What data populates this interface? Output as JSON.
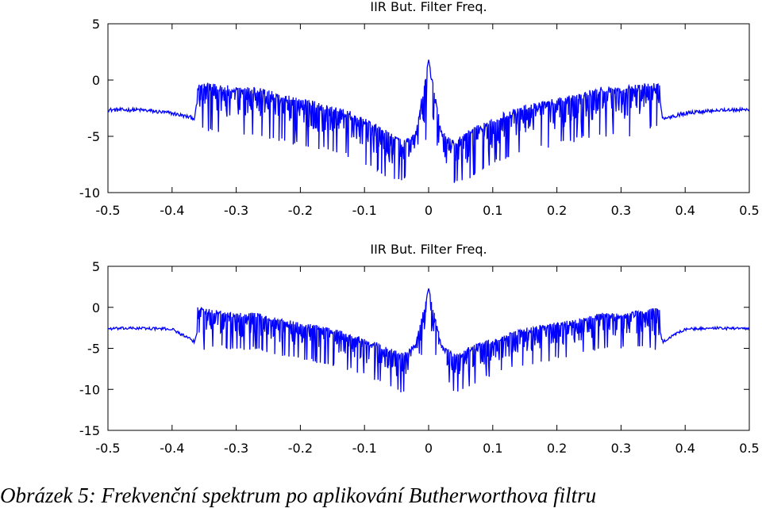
{
  "chart_data": [
    {
      "type": "line",
      "title": "IIR But. Filter Freq.",
      "xlabel": "",
      "ylabel": "",
      "xlim": [
        -0.5,
        0.5
      ],
      "ylim": [
        -10,
        5
      ],
      "xticks": [
        "-0.5",
        "-0.4",
        "-0.3",
        "-0.2",
        "-0.1",
        "0",
        "0.1",
        "0.2",
        "0.3",
        "0.4",
        "0.5"
      ],
      "yticks": [
        "5",
        "0",
        "-5",
        "-10"
      ],
      "grid": false,
      "color": "#0000ff",
      "envelope_x": [
        0,
        0.02,
        0.03,
        0.04,
        0.06,
        0.08,
        0.1,
        0.12,
        0.15,
        0.2,
        0.25,
        0.27,
        0.3,
        0.33,
        0.36,
        0.361,
        0.365,
        0.4,
        0.45,
        0.5
      ],
      "envelope_upper": [
        1.8,
        -4.4,
        -5.0,
        -5.4,
        -4.5,
        -3.9,
        -3.4,
        -2.8,
        -2.2,
        -1.6,
        -0.9,
        -0.6,
        -0.6,
        -0.3,
        -0.2,
        -0.2,
        -3.3,
        -2.9,
        -2.5,
        -2.5
      ],
      "envelope_lower": [
        -5.2,
        -5.6,
        -7.6,
        -8.8,
        -8.6,
        -7.8,
        -7.2,
        -6.6,
        -6.0,
        -5.5,
        -4.8,
        -4.6,
        -4.7,
        -4.5,
        -3.8,
        -3.8,
        -3.5,
        -3.0,
        -2.8,
        -2.8
      ]
    },
    {
      "type": "line",
      "title": "IIR But. Filter Freq.",
      "xlabel": "",
      "ylabel": "",
      "xlim": [
        -0.5,
        0.5
      ],
      "ylim": [
        -15,
        5
      ],
      "xticks": [
        "-0.5",
        "-0.4",
        "-0.3",
        "-0.2",
        "-0.1",
        "0",
        "0.1",
        "0.2",
        "0.3",
        "0.4",
        "0.5"
      ],
      "yticks": [
        "5",
        "0",
        "-5",
        "-10",
        "-15"
      ],
      "grid": false,
      "color": "#0000ff",
      "envelope_x": [
        0,
        0.02,
        0.03,
        0.04,
        0.06,
        0.08,
        0.1,
        0.12,
        0.15,
        0.2,
        0.25,
        0.27,
        0.3,
        0.33,
        0.36,
        0.361,
        0.365,
        0.4,
        0.45,
        0.5
      ],
      "envelope_upper": [
        2.3,
        -4.2,
        -5.0,
        -5.6,
        -4.9,
        -4.3,
        -3.8,
        -3.2,
        -2.5,
        -1.8,
        -1.1,
        -0.6,
        -0.7,
        -0.3,
        0.0,
        0.0,
        -2.6,
        -2.4,
        -2.3,
        -2.4
      ],
      "envelope_lower": [
        -5.0,
        -5.8,
        -8.6,
        -10.2,
        -9.4,
        -8.6,
        -8.0,
        -7.4,
        -6.8,
        -6.0,
        -5.2,
        -4.8,
        -4.8,
        -4.5,
        -5.2,
        -6.2,
        -5.8,
        -2.9,
        -2.8,
        -2.8
      ]
    }
  ],
  "caption": "Obrázek 5: Frekvenční spektrum po aplikování Butherworthova filtru"
}
